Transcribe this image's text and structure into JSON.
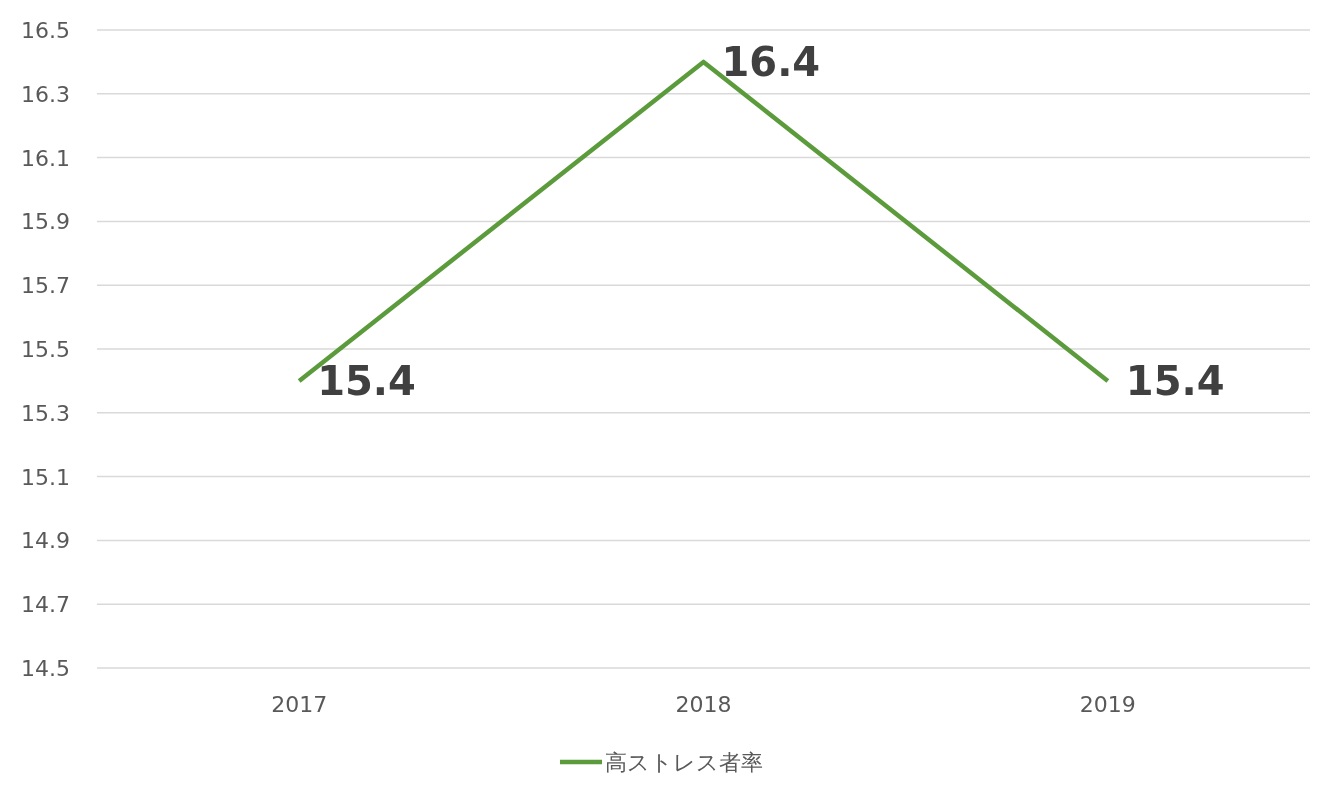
{
  "chart_data": {
    "type": "line",
    "categories": [
      "2017",
      "2018",
      "2019"
    ],
    "series": [
      {
        "name": "高ストレス者率",
        "color": "#5b9b3c",
        "values": [
          15.4,
          16.4,
          15.4
        ]
      }
    ],
    "ylim": [
      14.5,
      16.5
    ],
    "yticks": [
      14.5,
      14.7,
      14.9,
      15.1,
      15.3,
      15.5,
      15.7,
      15.9,
      16.1,
      16.3,
      16.5
    ],
    "grid": "y",
    "legend": "bottom",
    "data_labels": true
  }
}
